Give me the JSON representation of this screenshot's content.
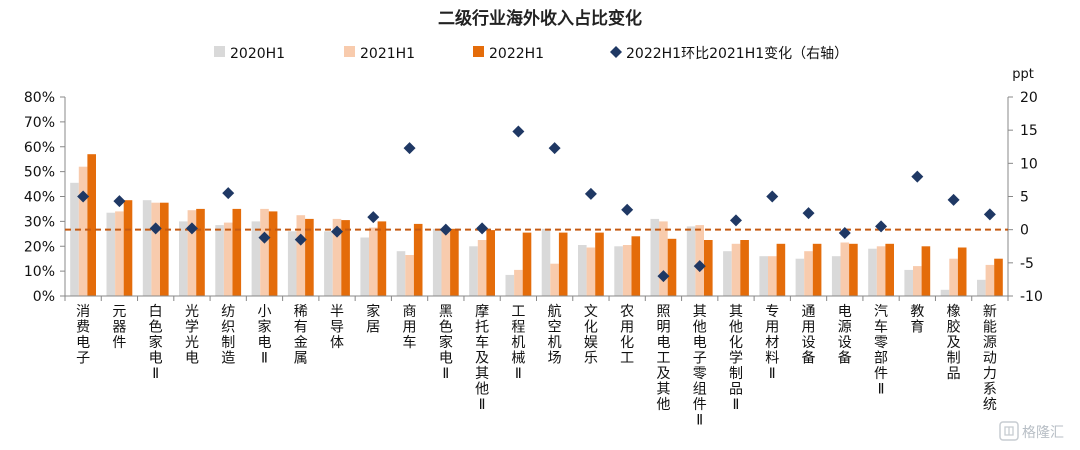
{
  "chart_data": {
    "type": "bar",
    "title": "二级行业海外收入占比变化",
    "right_axis_unit": "ppt",
    "categories": [
      "消费电子",
      "元器件",
      "白色家电Ⅱ",
      "光学光电",
      "纺织制造",
      "小家电Ⅱ",
      "稀有金属",
      "半导体",
      "家居",
      "商用车",
      "黑色家电Ⅱ",
      "摩托车及其他Ⅱ",
      "工程机械Ⅱ",
      "航空机场",
      "文化娱乐",
      "农用化工",
      "照明电工及其他",
      "其他电子零组件Ⅱ",
      "其他化学制品Ⅱ",
      "专用材料Ⅱ",
      "通用设备",
      "电源设备",
      "汽车零部件Ⅱ",
      "教育",
      "橡胶及制品",
      "新能源动力系统"
    ],
    "series": [
      {
        "name": "2020H1",
        "axis": "left",
        "color": "#d9d9d9",
        "values": [
          45.5,
          33.5,
          38.5,
          30.0,
          28.5,
          30.0,
          26.0,
          26.0,
          23.5,
          18.0,
          27.0,
          20.0,
          8.5,
          27.0,
          20.5,
          20.0,
          31.0,
          28.0,
          18.0,
          16.0,
          15.0,
          16.0,
          19.0,
          10.5,
          2.5,
          6.5
        ]
      },
      {
        "name": "2021H1",
        "axis": "left",
        "color": "#f8cbad",
        "values": [
          52.0,
          34.0,
          37.5,
          34.5,
          29.5,
          35.0,
          32.5,
          31.0,
          27.5,
          16.5,
          27.0,
          22.5,
          10.5,
          13.0,
          19.5,
          20.5,
          30.0,
          28.5,
          21.0,
          16.0,
          18.0,
          21.5,
          20.0,
          12.0,
          15.0,
          12.5
        ]
      },
      {
        "name": "2022H1",
        "axis": "left",
        "color": "#e46c0a",
        "values": [
          57.0,
          38.5,
          37.5,
          35.0,
          35.0,
          34.0,
          31.0,
          30.5,
          30.0,
          29.0,
          27.0,
          26.5,
          25.5,
          25.5,
          25.5,
          24.0,
          23.0,
          22.5,
          22.5,
          21.0,
          21.0,
          21.0,
          21.0,
          20.0,
          19.5,
          15.0
        ]
      },
      {
        "name": "2022H1环比2021H1变化（右轴）",
        "axis": "right",
        "type": "scatter",
        "color": "#1f3864",
        "values": [
          5.0,
          4.3,
          0.2,
          0.2,
          5.5,
          -1.2,
          -1.5,
          -0.3,
          1.9,
          12.3,
          0.0,
          0.2,
          14.8,
          12.3,
          5.4,
          3.0,
          -7.0,
          -5.5,
          1.4,
          5.0,
          2.5,
          -0.5,
          0.5,
          8.0,
          4.5,
          2.3
        ]
      }
    ],
    "ylim_left": [
      0,
      80
    ],
    "yticks_left": [
      "0%",
      "10%",
      "20%",
      "30%",
      "40%",
      "50%",
      "60%",
      "70%",
      "80%"
    ],
    "ylim_right": [
      -10,
      20
    ],
    "yticks_right": [
      "-10",
      "-5",
      "0",
      "5",
      "10",
      "15",
      "20"
    ],
    "reference_line": {
      "axis": "right",
      "value": 0,
      "style": "dashed",
      "color": "#c55a11"
    },
    "grid": false,
    "legend_position": "top"
  },
  "watermark": "格隆汇"
}
